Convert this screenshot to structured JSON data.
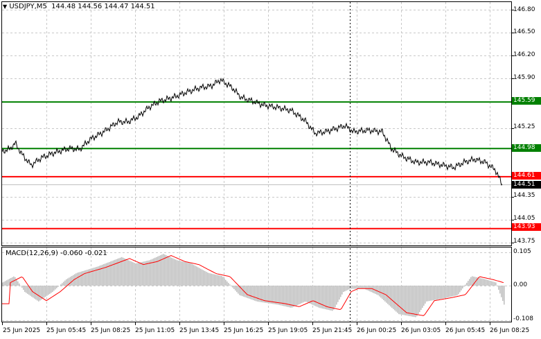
{
  "header": {
    "symbol": "USDJPY,M5",
    "ohlc": "144.48 144.56 144.47 144.51",
    "toggle_icon": "triangle-down-icon"
  },
  "macd": {
    "label": "MACD(12,26,9) -0.060 -0.021",
    "axis_labels": [
      "0.105",
      "0.00",
      "-0.108"
    ]
  },
  "price_axis": {
    "labels": [
      "146.80",
      "146.50",
      "146.20",
      "145.90",
      "145.25",
      "144.35",
      "144.05",
      "143.75"
    ],
    "levels": [
      {
        "value": "145.59",
        "color": "#008000"
      },
      {
        "value": "144.98",
        "color": "#008000"
      },
      {
        "value": "144.61",
        "color": "#ff0000"
      },
      {
        "value": "143.93",
        "color": "#ff0000"
      }
    ],
    "current_price": "144.51"
  },
  "time_axis": {
    "labels": [
      "25 Jun 2025",
      "25 Jun 05:45",
      "25 Jun 08:25",
      "25 Jun 11:05",
      "25 Jun 13:45",
      "25 Jun 16:25",
      "25 Jun 19:05",
      "25 Jun 21:45",
      "26 Jun 00:25",
      "26 Jun 03:05",
      "26 Jun 05:45",
      "26 Jun 08:25"
    ]
  },
  "chart_data": {
    "type": "line",
    "series": [
      {
        "name": "USDJPY,M5",
        "x": [
          "25 Jun 2025",
          "25 Jun 05:45",
          "25 Jun 08:25",
          "25 Jun 11:05",
          "25 Jun 13:45",
          "25 Jun 16:25",
          "25 Jun 19:05",
          "25 Jun 21:45",
          "26 Jun 00:25",
          "26 Jun 03:05",
          "26 Jun 05:45",
          "26 Jun 08:25"
        ],
        "values": [
          144.94,
          144.76,
          144.97,
          145.4,
          145.74,
          145.7,
          145.52,
          145.22,
          145.2,
          144.82,
          144.8,
          144.51
        ]
      }
    ],
    "macd": {
      "params": "12,26,9",
      "main": -0.06,
      "signal": -0.021
    },
    "ylim": [
      143.75,
      146.8
    ]
  },
  "colors": {
    "support": "#008000",
    "resistance": "#ff0000",
    "price": "#000000",
    "histogram": "#c0c0c0",
    "signal": "#ff0000"
  }
}
